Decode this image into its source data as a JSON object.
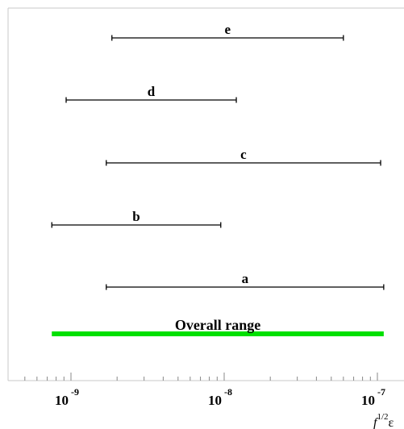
{
  "chart_data": {
    "type": "range",
    "xscale": "log",
    "xlim": [
      5e-10,
      1.3e-07
    ],
    "xlabel": "f^1/2 ε",
    "xlabel_parts": {
      "base": "f",
      "sup": "1/2",
      "tail": "ε"
    },
    "ticks": [
      {
        "value": 1e-09,
        "base": "10",
        "exp": "-9"
      },
      {
        "value": 1e-08,
        "base": "10",
        "exp": "-8"
      },
      {
        "value": 1e-07,
        "base": "10",
        "exp": "-7"
      }
    ],
    "ranges": [
      {
        "name": "e",
        "x": [
          1.85e-09,
          6e-08
        ],
        "color": "#000000"
      },
      {
        "name": "d",
        "x": [
          9.3e-10,
          1.2e-08
        ],
        "color": "#000000"
      },
      {
        "name": "c",
        "x": [
          1.7e-09,
          1.05e-07
        ],
        "color": "#000000"
      },
      {
        "name": "b",
        "x": [
          7.5e-10,
          9.5e-09
        ],
        "color": "#000000"
      },
      {
        "name": "a",
        "x": [
          1.7e-09,
          1.1e-07
        ],
        "color": "#000000"
      },
      {
        "name": "Overall range",
        "x": [
          7.5e-10,
          1.1e-07
        ],
        "color": "#00e000"
      }
    ],
    "grid": false,
    "legend": "none"
  }
}
